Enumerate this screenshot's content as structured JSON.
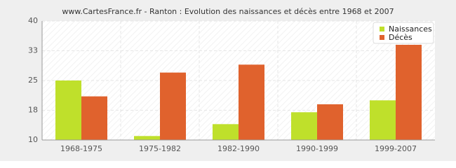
{
  "chart_data": {
    "type": "bar",
    "title": "www.CartesFrance.fr - Ranton : Evolution des naissances et décès entre 1968 et 2007",
    "categories": [
      "1968-1975",
      "1975-1982",
      "1982-1990",
      "1990-1999",
      "1999-2007"
    ],
    "series": [
      {
        "name": "Naissances",
        "color": "#bfe02b",
        "values": [
          25,
          11,
          14,
          17,
          20
        ]
      },
      {
        "name": "Décès",
        "color": "#e0622d",
        "values": [
          21,
          27,
          29,
          19,
          34
        ]
      }
    ],
    "ylim": [
      10,
      40
    ],
    "yticks": [
      10,
      {
        "value": 17.5,
        "label": "18"
      },
      25,
      {
        "value": 32.5,
        "label": "33"
      },
      40
    ],
    "grid": true,
    "legend": "top-right"
  }
}
